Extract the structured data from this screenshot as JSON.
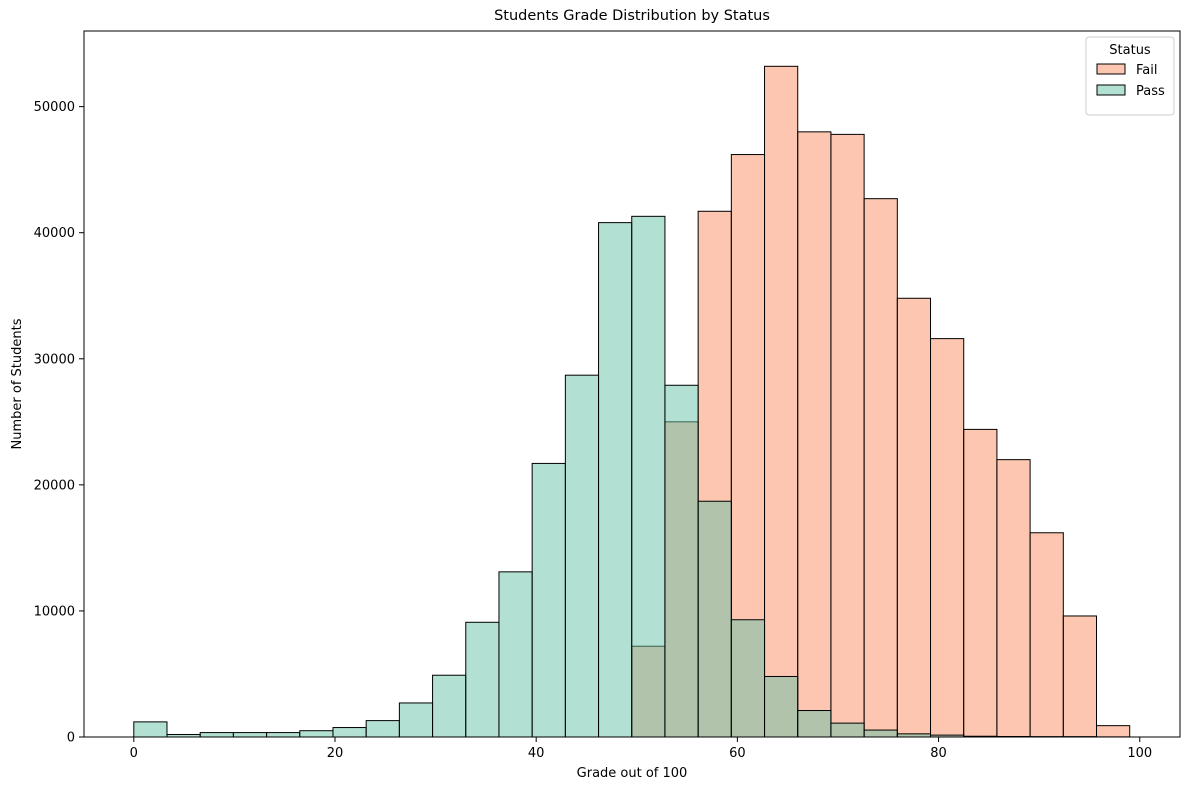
{
  "chart_data": {
    "type": "bar",
    "title": "Students Grade Distribution by Status",
    "xlabel": "Grade out of 100",
    "ylabel": "Number of Students",
    "xlim": [
      -4.95,
      104.0
    ],
    "ylim": [
      0,
      56000
    ],
    "xticks": [
      0,
      20,
      40,
      60,
      80,
      100
    ],
    "yticks": [
      0,
      10000,
      20000,
      30000,
      40000,
      50000
    ],
    "grid": false,
    "legend": {
      "title": "Status",
      "position": "top-right"
    },
    "bin_start": 0,
    "bin_width": 3.3,
    "colors": {
      "Fail": "#fc8d62",
      "Pass": "#66c2a5",
      "edge": "#000000"
    },
    "series": [
      {
        "name": "Fail",
        "values": [
          0,
          0,
          0,
          0,
          0,
          0,
          0,
          0,
          0,
          0,
          0,
          0,
          0,
          0,
          0,
          7200,
          25000,
          41700,
          46200,
          53200,
          48000,
          47800,
          42700,
          34800,
          31600,
          24400,
          22000,
          16200,
          9600,
          900
        ]
      },
      {
        "name": "Pass",
        "values": [
          1200,
          200,
          350,
          350,
          350,
          500,
          750,
          1300,
          2700,
          4900,
          9100,
          13100,
          21700,
          28700,
          40800,
          41300,
          27900,
          18700,
          9300,
          4800,
          2100,
          1100,
          550,
          250,
          150,
          60,
          40,
          30,
          30,
          10
        ]
      }
    ]
  }
}
